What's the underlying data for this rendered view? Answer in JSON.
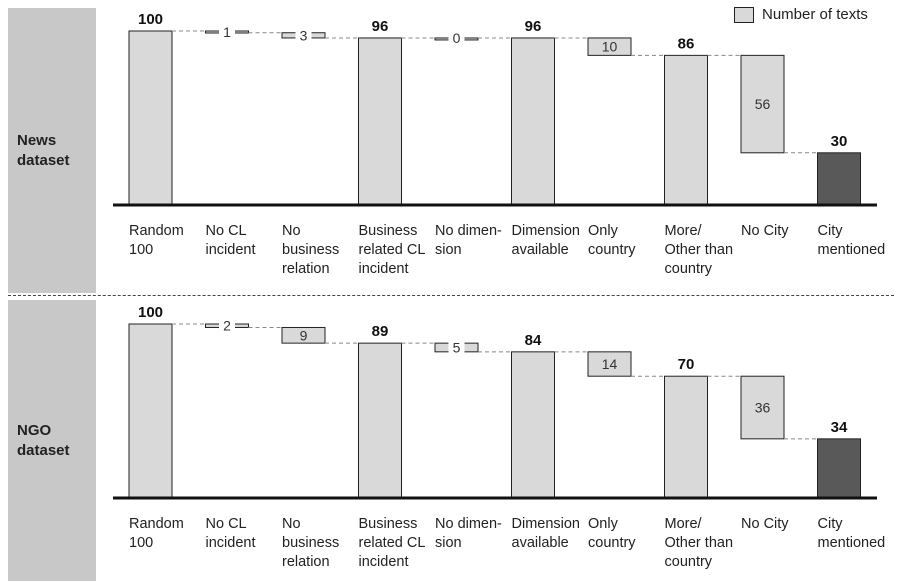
{
  "colors": {
    "bar": "#d9d9d9",
    "final_bar": "#595959",
    "outline": "#222222",
    "label_bg": "#c8c8c8"
  },
  "legend": {
    "label": "Number of texts"
  },
  "chart_data": [
    {
      "type": "bar",
      "panel_label": [
        "News",
        "dataset"
      ],
      "categories": [
        [
          "Random",
          "100"
        ],
        [
          "No CL",
          "incident"
        ],
        [
          "No",
          "business",
          "relation"
        ],
        [
          "Business",
          "related CL",
          "incident"
        ],
        [
          "No dimen-",
          "sion"
        ],
        [
          "Dimension",
          "available"
        ],
        [
          "Only",
          "country"
        ],
        [
          "More/",
          "Other than",
          "country"
        ],
        [
          "No City"
        ],
        [
          "City",
          "mentioned"
        ]
      ],
      "steps": [
        {
          "kind": "total",
          "value": 100
        },
        {
          "kind": "drop",
          "value": 1
        },
        {
          "kind": "drop",
          "value": 3
        },
        {
          "kind": "total",
          "value": 96
        },
        {
          "kind": "drop",
          "value": 0
        },
        {
          "kind": "total",
          "value": 96
        },
        {
          "kind": "drop",
          "value": 10
        },
        {
          "kind": "total",
          "value": 86
        },
        {
          "kind": "drop",
          "value": 56
        },
        {
          "kind": "final",
          "value": 30
        }
      ],
      "labels": [
        "100",
        "1",
        "3",
        "96",
        "0",
        "96",
        "10",
        "86",
        "56",
        "30"
      ]
    },
    {
      "type": "bar",
      "panel_label": [
        "NGO",
        "dataset"
      ],
      "categories": [
        [
          "Random",
          "100"
        ],
        [
          "No CL",
          "incident"
        ],
        [
          "No",
          "business",
          "relation"
        ],
        [
          "Business",
          "related CL",
          "incident"
        ],
        [
          "No dimen-",
          "sion"
        ],
        [
          "Dimension",
          "available"
        ],
        [
          "Only",
          "country"
        ],
        [
          "More/",
          "Other than",
          "country"
        ],
        [
          "No City"
        ],
        [
          "City",
          "mentioned"
        ]
      ],
      "steps": [
        {
          "kind": "total",
          "value": 100
        },
        {
          "kind": "drop",
          "value": 2
        },
        {
          "kind": "drop",
          "value": 9
        },
        {
          "kind": "total",
          "value": 89
        },
        {
          "kind": "drop",
          "value": 5
        },
        {
          "kind": "total",
          "value": 84
        },
        {
          "kind": "drop",
          "value": 14
        },
        {
          "kind": "total",
          "value": 70
        },
        {
          "kind": "drop",
          "value": 36
        },
        {
          "kind": "final",
          "value": 34
        }
      ],
      "labels": [
        "100",
        "2",
        "9",
        "89",
        "5",
        "84",
        "14",
        "70",
        "36",
        "34"
      ]
    }
  ]
}
